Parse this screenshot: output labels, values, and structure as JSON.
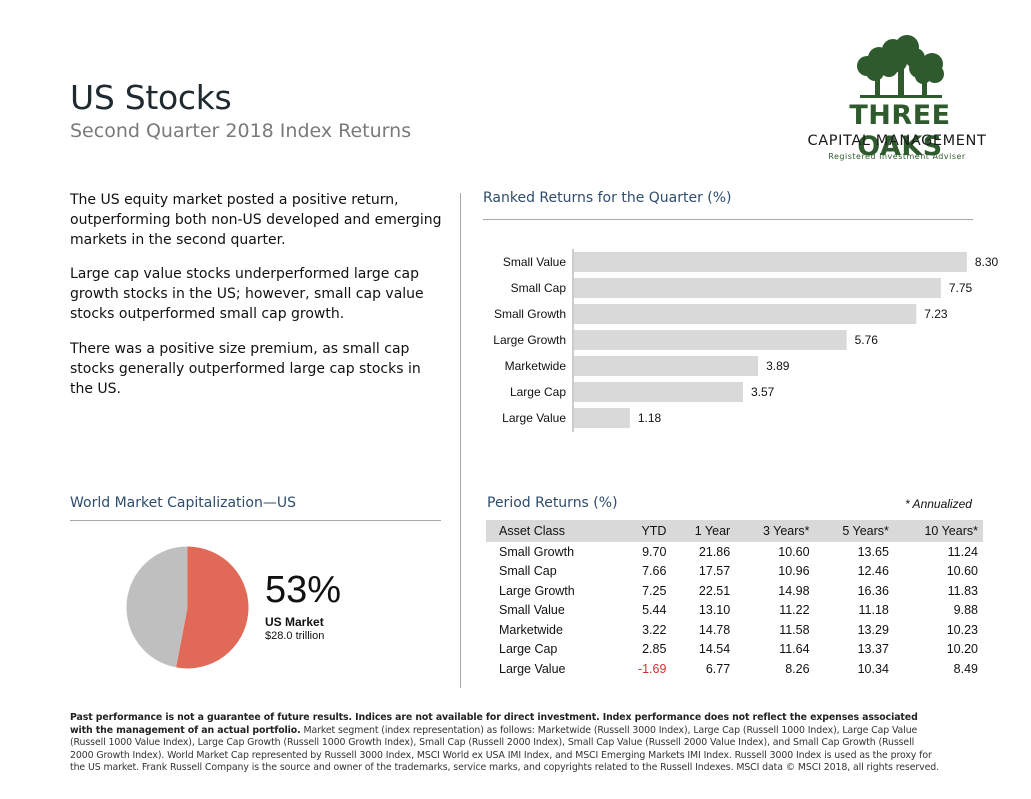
{
  "header": {
    "title": "US Stocks",
    "subtitle": "Second Quarter 2018 Index Returns"
  },
  "logo": {
    "name": "THREE OAKS",
    "line2": "CAPITAL MANAGEMENT",
    "line3": "Registered Investment Adviser"
  },
  "intro": {
    "p1": "The US equity market posted a positive return, outperforming both non-US developed and emerging markets in the second quarter.",
    "p2": "Large cap value stocks underperformed large cap growth stocks in the US; however, small cap value stocks outperformed small cap growth.",
    "p3": "There was a positive size premium, as small cap stocks generally outperformed large cap stocks in the US."
  },
  "ranked": {
    "title": "Ranked Returns for the Quarter (%)"
  },
  "world": {
    "title": "World Market Capitalization—US",
    "pct_label": "53%",
    "market_label": "US Market",
    "market_value": "$28.0 trillion"
  },
  "period": {
    "title": "Period Returns (%)",
    "annualized_note": "* Annualized",
    "headers": [
      "Asset Class",
      "YTD",
      "1 Year",
      "3 Years*",
      "5 Years*",
      "10 Years*"
    ],
    "rows": [
      [
        "Small Growth",
        "9.70",
        "21.86",
        "10.60",
        "13.65",
        "11.24"
      ],
      [
        "Small Cap",
        "7.66",
        "17.57",
        "10.96",
        "12.46",
        "10.60"
      ],
      [
        "Large Growth",
        "7.25",
        "22.51",
        "14.98",
        "16.36",
        "11.83"
      ],
      [
        "Small Value",
        "5.44",
        "13.10",
        "11.22",
        "11.18",
        "9.88"
      ],
      [
        "Marketwide",
        "3.22",
        "14.78",
        "11.58",
        "13.29",
        "10.23"
      ],
      [
        "Large Cap",
        "2.85",
        "14.54",
        "11.64",
        "13.37",
        "10.20"
      ],
      [
        "Large Value",
        "-1.69",
        "6.77",
        "8.26",
        "10.34",
        "8.49"
      ]
    ]
  },
  "footnote": {
    "bold": "Past performance is not a guarantee of future results. Indices are not available for direct investment. Index performance does not reflect the expenses associated with the management of an actual portfolio.",
    "text": " Market segment (index representation) as follows: Marketwide (Russell 3000 Index), Large Cap (Russell 1000 Index), Large Cap Value (Russell 1000 Value Index), Large Cap Growth (Russell 1000 Growth Index), Small Cap (Russell 2000 Index), Small Cap Value (Russell 2000 Value Index), and Small Cap Growth (Russell 2000 Growth Index). World Market Cap represented by Russell 3000 Index, MSCI World ex USA IMI Index, and MSCI Emerging Markets IMI Index. Russell 3000 Index is used as the proxy for the US market. Frank Russell Company is the source and owner of the trademarks, service marks, and copyrights related to the Russell Indexes. MSCI data © MSCI 2018, all rights reserved."
  },
  "colors": {
    "bar": "#d9d9d9",
    "pie_us": "#e06a57",
    "pie_rest": "#bfbfbf",
    "logo_green": "#2f5a2e",
    "negative": "#d0312d"
  },
  "chart_data": [
    {
      "type": "bar",
      "orientation": "horizontal",
      "title": "Ranked Returns for the Quarter (%)",
      "categories": [
        "Small Value",
        "Small Cap",
        "Small Growth",
        "Large Growth",
        "Marketwide",
        "Large Cap",
        "Large Value"
      ],
      "values": [
        8.3,
        7.75,
        7.23,
        5.76,
        3.89,
        3.57,
        1.18
      ],
      "value_labels": [
        "8.30",
        "7.75",
        "7.23",
        "5.76",
        "3.89",
        "3.57",
        "1.18"
      ],
      "xlim": [
        0,
        9
      ],
      "grid": false
    },
    {
      "type": "pie",
      "title": "World Market Capitalization—US",
      "values": [
        53,
        47
      ],
      "colors": [
        "#e06a57",
        "#bfbfbf"
      ]
    }
  ]
}
